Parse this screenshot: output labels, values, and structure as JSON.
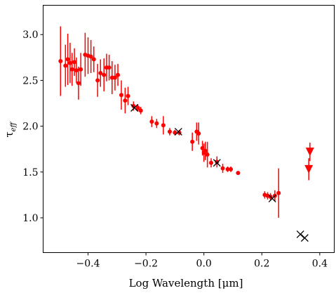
{
  "chart_data": {
    "type": "scatter",
    "title": "",
    "xlabel": "Log Wavelength [μm]",
    "ylabel": "τ_eff",
    "xlim": [
      -0.555,
      0.45
    ],
    "ylim": [
      0.62,
      3.32
    ],
    "xticks": [
      -0.4,
      -0.2,
      0.0,
      0.2,
      0.4
    ],
    "xtick_labels": [
      "−0.4",
      "−0.2",
      "0.0",
      "0.2",
      "0.4"
    ],
    "yticks": [
      1.0,
      1.5,
      2.0,
      2.5,
      3.0
    ],
    "ytick_labels": [
      "1.0",
      "1.5",
      "2.0",
      "2.5",
      "3.0"
    ],
    "grid": false,
    "colors": {
      "points": "#ff0000",
      "crosses": "#000000",
      "axes": "#000000"
    },
    "series": [
      {
        "marker": "circle-errorbar",
        "points": [
          {
            "x": -0.495,
            "y": 2.71,
            "err": 0.38
          },
          {
            "x": -0.478,
            "y": 2.66,
            "err": 0.23
          },
          {
            "x": -0.47,
            "y": 2.73,
            "err": 0.28
          },
          {
            "x": -0.462,
            "y": 2.69,
            "err": 0.22
          },
          {
            "x": -0.455,
            "y": 2.62,
            "err": 0.18
          },
          {
            "x": -0.447,
            "y": 2.7,
            "err": 0.15
          },
          {
            "x": -0.44,
            "y": 2.61,
            "err": 0.14
          },
          {
            "x": -0.433,
            "y": 2.47,
            "err": 0.18
          },
          {
            "x": -0.425,
            "y": 2.62,
            "err": 0.18
          },
          {
            "x": -0.41,
            "y": 2.78,
            "err": 0.24
          },
          {
            "x": -0.4,
            "y": 2.77,
            "err": 0.2
          },
          {
            "x": -0.39,
            "y": 2.76,
            "err": 0.18
          },
          {
            "x": -0.38,
            "y": 2.73,
            "err": 0.14
          },
          {
            "x": -0.367,
            "y": 2.5,
            "err": 0.18
          },
          {
            "x": -0.357,
            "y": 2.58,
            "err": 0.15
          },
          {
            "x": -0.345,
            "y": 2.56,
            "err": 0.18
          },
          {
            "x": -0.336,
            "y": 2.64,
            "err": 0.15
          },
          {
            "x": -0.327,
            "y": 2.64,
            "err": 0.14
          },
          {
            "x": -0.317,
            "y": 2.53,
            "err": 0.18
          },
          {
            "x": -0.307,
            "y": 2.53,
            "err": 0.14
          },
          {
            "x": -0.297,
            "y": 2.56,
            "err": 0.12
          },
          {
            "x": -0.285,
            "y": 2.34,
            "err": 0.16
          },
          {
            "x": -0.272,
            "y": 2.28,
            "err": 0.14
          },
          {
            "x": -0.262,
            "y": 2.33,
            "err": 0.1
          },
          {
            "x": -0.243,
            "y": 2.22,
            "err": 0.05
          },
          {
            "x": -0.228,
            "y": 2.2,
            "err": 0.04
          },
          {
            "x": -0.218,
            "y": 2.17,
            "err": 0.04
          },
          {
            "x": -0.18,
            "y": 2.05,
            "err": 0.06
          },
          {
            "x": -0.163,
            "y": 2.03,
            "err": 0.05
          },
          {
            "x": -0.14,
            "y": 2.01,
            "err": 0.1
          },
          {
            "x": -0.118,
            "y": 1.94,
            "err": 0.04
          },
          {
            "x": -0.1,
            "y": 1.93,
            "err": 0.03
          },
          {
            "x": -0.085,
            "y": 1.93,
            "err": 0.03
          },
          {
            "x": -0.04,
            "y": 1.83,
            "err": 0.1
          },
          {
            "x": -0.025,
            "y": 1.94,
            "err": 0.1
          },
          {
            "x": -0.018,
            "y": 1.92,
            "err": 0.12
          },
          {
            "x": -0.005,
            "y": 1.76,
            "err": 0.08
          },
          {
            "x": 0.0,
            "y": 1.71,
            "err": 0.1
          },
          {
            "x": 0.005,
            "y": 1.73,
            "err": 0.1
          },
          {
            "x": 0.012,
            "y": 1.69,
            "err": 0.14
          },
          {
            "x": 0.025,
            "y": 1.6,
            "err": 0.05
          },
          {
            "x": 0.045,
            "y": 1.61,
            "err": 0.06
          },
          {
            "x": 0.065,
            "y": 1.54,
            "err": 0.05
          },
          {
            "x": 0.082,
            "y": 1.53,
            "err": 0.03
          },
          {
            "x": 0.093,
            "y": 1.53,
            "err": 0.03
          },
          {
            "x": 0.118,
            "y": 1.49,
            "err": 0.02
          },
          {
            "x": 0.21,
            "y": 1.25,
            "err": 0.04
          },
          {
            "x": 0.22,
            "y": 1.24,
            "err": 0.04
          },
          {
            "x": 0.23,
            "y": 1.23,
            "err": 0.04
          },
          {
            "x": 0.245,
            "y": 1.24,
            "err": 0.06
          },
          {
            "x": 0.258,
            "y": 1.27,
            "err": 0.27
          }
        ]
      },
      {
        "marker": "triangle-down",
        "points": [
          {
            "x": 0.366,
            "y": 1.72,
            "err": 0.1
          },
          {
            "x": 0.362,
            "y": 1.53,
            "err": 0.12
          }
        ]
      },
      {
        "marker": "x",
        "points": [
          {
            "x": -0.24,
            "y": 2.2
          },
          {
            "x": -0.088,
            "y": 1.94
          },
          {
            "x": 0.045,
            "y": 1.6
          },
          {
            "x": 0.236,
            "y": 1.21
          },
          {
            "x": 0.333,
            "y": 0.82
          },
          {
            "x": 0.348,
            "y": 0.78
          }
        ]
      }
    ]
  }
}
